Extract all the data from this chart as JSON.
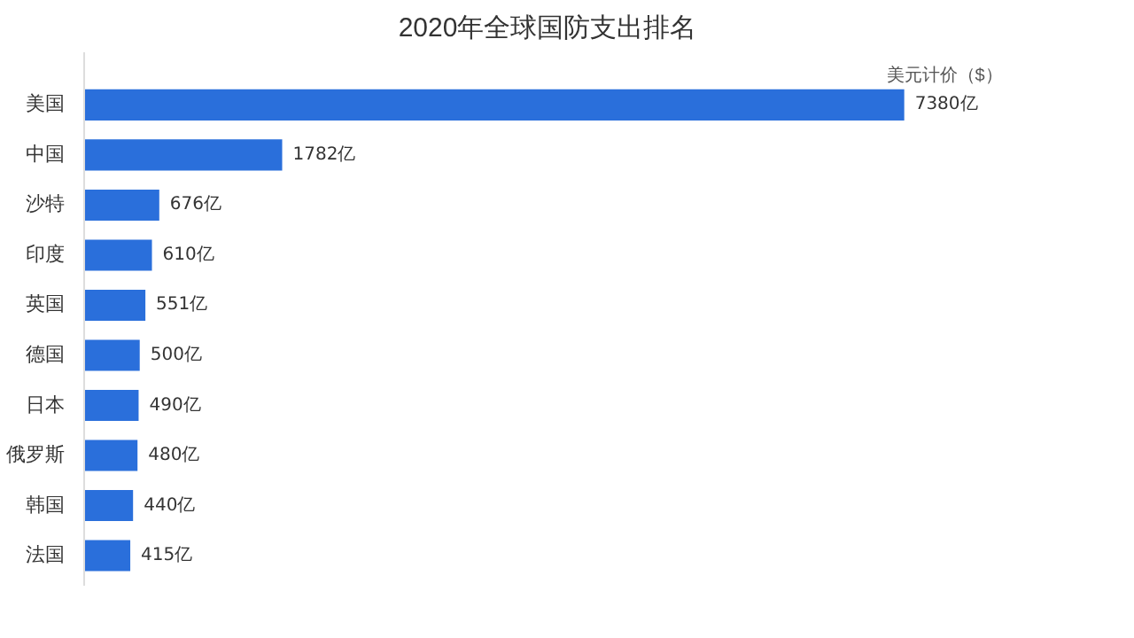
{
  "chart_data": {
    "type": "bar",
    "orientation": "horizontal",
    "title": "2020年全球国防支出排名",
    "annotations": [
      "美元计价（$）"
    ],
    "categories": [
      "美国",
      "中国",
      "沙特",
      "印度",
      "英国",
      "德国",
      "日本",
      "俄罗斯",
      "韩国",
      "法国"
    ],
    "values": [
      7380,
      1782,
      676,
      610,
      551,
      500,
      490,
      480,
      440,
      415
    ],
    "value_labels": [
      "7380亿",
      "1782亿",
      "676亿",
      "610亿",
      "551亿",
      "500亿",
      "490亿",
      "480亿",
      "440亿",
      "415亿"
    ],
    "color": "#2a6fdb"
  }
}
